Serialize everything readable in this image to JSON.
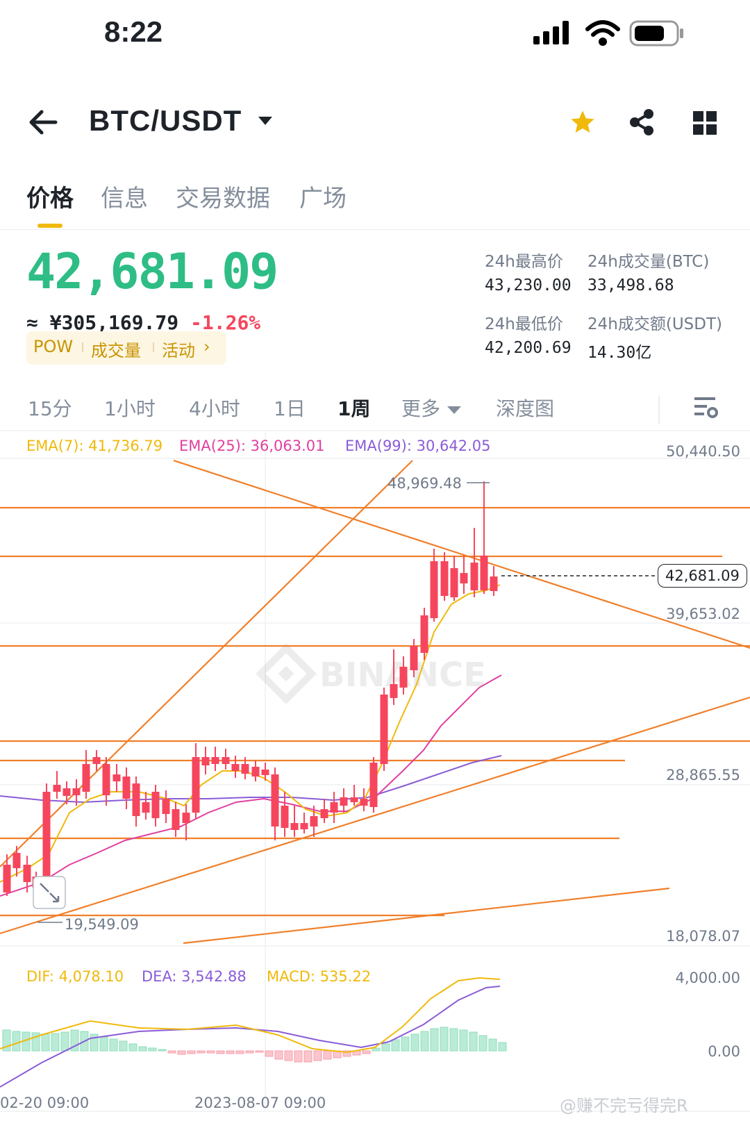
{
  "status_bar": {
    "time": "8:22"
  },
  "header": {
    "pair": "BTC/USDT",
    "icons": [
      "back-arrow-icon",
      "dropdown-caret-icon",
      "star-icon",
      "share-icon",
      "grid-icon"
    ]
  },
  "tabs": [
    {
      "label": "价格",
      "active": true
    },
    {
      "label": "信息",
      "active": false
    },
    {
      "label": "交易数据",
      "active": false
    },
    {
      "label": "广场",
      "active": false
    }
  ],
  "price": {
    "last": "42,681.09",
    "cny": "≈ ¥305,169.79",
    "change_pct": "-1.26%",
    "tags": [
      "POW",
      "成交量",
      "活动"
    ]
  },
  "stats": {
    "high_label": "24h最高价",
    "high_value": "43,230.00",
    "vol_btc_label": "24h成交量(BTC)",
    "vol_btc_value": "33,498.68",
    "low_label": "24h最低价",
    "low_value": "42,200.69",
    "vol_usdt_label": "24h成交额(USDT)",
    "vol_usdt_value": "14.30亿"
  },
  "intervals": [
    {
      "label": "15分",
      "active": false
    },
    {
      "label": "1小时",
      "active": false
    },
    {
      "label": "4小时",
      "active": false
    },
    {
      "label": "1日",
      "active": false
    },
    {
      "label": "1周",
      "active": true
    },
    {
      "label": "更多",
      "active": false
    },
    {
      "label": "深度图",
      "active": false
    }
  ],
  "chart": {
    "ema7": "EMA(7): 41,736.79",
    "ema25": "EMA(25): 36,063.01",
    "ema99": "EMA(99): 30,642.05",
    "y_ticks": [
      "50,440.50",
      "39,653.02",
      "28,865.55",
      "18,078.07"
    ],
    "price_tag": "42,681.09",
    "high_marker": "48,969.48",
    "low_marker": "19,549.09",
    "watermark": "BINANCE",
    "colors": {
      "up": "#2ebd85",
      "down": "#f6465d",
      "ema7": "#f0b90b",
      "ema25": "#e040a0",
      "ema99": "#8a5cd6",
      "trendline": "#f07f2a"
    }
  },
  "macd": {
    "dif": "DIF: 4,078.10",
    "dea": "DEA: 3,542.88",
    "macd": "MACD: 535.22",
    "y_ticks": [
      "4,000.00",
      "0.00"
    ]
  },
  "x_axis": {
    "labels": [
      "02-20 09:00",
      "2023-08-07 09:00"
    ]
  },
  "watermark_user": "@赚不完亏得完R"
}
